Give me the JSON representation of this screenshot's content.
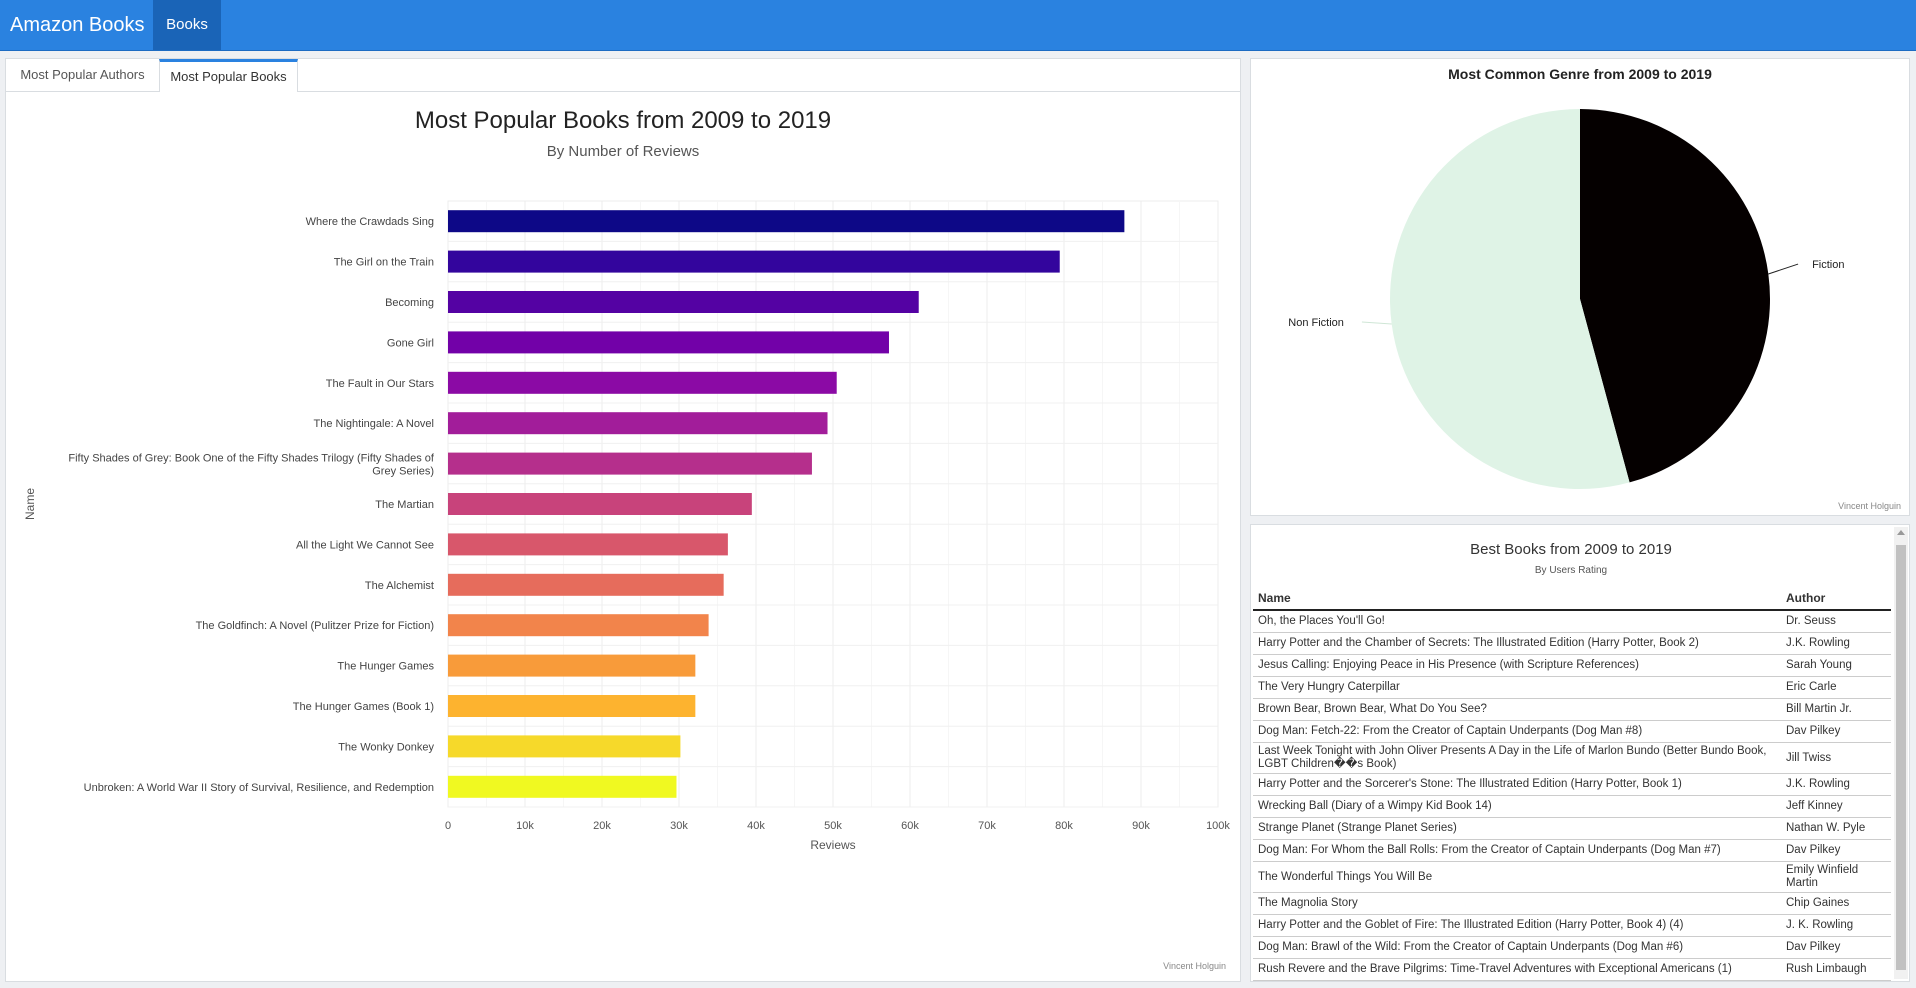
{
  "app": {
    "brand": "Amazon Books",
    "nav_tab": "Books"
  },
  "tabs": [
    "Most Popular Authors",
    "Most Popular Books"
  ],
  "colors": {
    "topbar": "#2a82e0",
    "nav_active": "#1a64b7",
    "accent": "#2a82e0"
  },
  "bar_chart": {
    "title": "Most Popular Books from 2009 to 2019",
    "subtitle": "By Number of Reviews",
    "credit": "Vincent Holguin"
  },
  "pie_chart": {
    "title": "Most Common Genre from 2009 to 2019",
    "credit": "Vincent Holguin"
  },
  "chart_data": [
    {
      "type": "bar",
      "orientation": "horizontal",
      "title": "Most Popular Books from 2009 to 2019",
      "subtitle": "By Number of Reviews",
      "xlabel": "Reviews",
      "ylabel": "Name",
      "xlim": [
        0,
        100000
      ],
      "xticks": [
        0,
        10000,
        20000,
        30000,
        40000,
        50000,
        60000,
        70000,
        80000,
        90000,
        100000
      ],
      "xtick_labels": [
        "0",
        "10k",
        "20k",
        "30k",
        "40k",
        "50k",
        "60k",
        "70k",
        "80k",
        "90k",
        "100k"
      ],
      "grid": true,
      "categories": [
        "Where the Crawdads Sing",
        "The Girl on the Train",
        "Becoming",
        "Gone Girl",
        "The Fault in Our Stars",
        "The Nightingale: A Novel",
        "Fifty Shades of Grey: Book One of the Fifty Shades Trilogy (Fifty Shades of Grey Series)",
        "The Martian",
        "All the Light We Cannot See",
        "The Alchemist",
        "The Goldfinch: A Novel (Pulitzer Prize for Fiction)",
        "The Hunger Games",
        "The Hunger Games (Book 1)",
        "The Wonky Donkey",
        "Unbroken: A World War II Story of Survival, Resilience, and Redemption"
      ],
      "values": [
        87841,
        79446,
        61133,
        57271,
        50482,
        49288,
        47265,
        39459,
        36348,
        35799,
        33844,
        32122,
        32122,
        30183,
        29673
      ],
      "colors": [
        "#0d0887",
        "#33059d",
        "#5402a3",
        "#7201a8",
        "#8b0aa5",
        "#a21d9a",
        "#b52f8c",
        "#c8437b",
        "#d8576b",
        "#e66c5c",
        "#f2844b",
        "#f89b3a",
        "#fdb32f",
        "#f6d92a",
        "#f0f921"
      ]
    },
    {
      "type": "pie",
      "title": "Most Common Genre from 2009 to 2019",
      "labels": [
        "Fiction",
        "Non Fiction"
      ],
      "values": [
        45.8,
        54.2
      ],
      "colors": [
        "#050000",
        "#dff3e6"
      ]
    }
  ],
  "table": {
    "title": "Best Books from 2009 to 2019",
    "subtitle": "By Users Rating",
    "headers": [
      "Name",
      "Author"
    ],
    "rows": [
      {
        "name": "Oh, the Places You'll Go!",
        "author": "Dr. Seuss"
      },
      {
        "name": "Harry Potter and the Chamber of Secrets: The Illustrated Edition (Harry Potter, Book 2)",
        "author": "J.K. Rowling"
      },
      {
        "name": "Jesus Calling: Enjoying Peace in His Presence (with Scripture References)",
        "author": "Sarah Young"
      },
      {
        "name": "The Very Hungry Caterpillar",
        "author": "Eric Carle"
      },
      {
        "name": "Brown Bear, Brown Bear, What Do You See?",
        "author": "Bill Martin Jr."
      },
      {
        "name": "Dog Man: Fetch-22: From the Creator of Captain Underpants (Dog Man #8)",
        "author": "Dav Pilkey"
      },
      {
        "name": "Last Week Tonight with John Oliver Presents A Day in the Life of Marlon Bundo (Better Bundo Book, LGBT Children��s Book)",
        "author": "Jill Twiss"
      },
      {
        "name": "Harry Potter and the Sorcerer's Stone: The Illustrated Edition (Harry Potter, Book 1)",
        "author": "J.K. Rowling"
      },
      {
        "name": "Wrecking Ball (Diary of a Wimpy Kid Book 14)",
        "author": "Jeff Kinney"
      },
      {
        "name": "Strange Planet (Strange Planet Series)",
        "author": "Nathan W. Pyle"
      },
      {
        "name": "Dog Man: For Whom the Ball Rolls: From the Creator of Captain Underpants (Dog Man #7)",
        "author": "Dav Pilkey"
      },
      {
        "name": "The Wonderful Things You Will Be",
        "author": "Emily Winfield Martin"
      },
      {
        "name": "The Magnolia Story",
        "author": "Chip Gaines"
      },
      {
        "name": "Harry Potter and the Goblet of Fire: The Illustrated Edition (Harry Potter, Book 4) (4)",
        "author": "J. K. Rowling"
      },
      {
        "name": "Dog Man: Brawl of the Wild: From the Creator of Captain Underpants (Dog Man #6)",
        "author": "Dav Pilkey"
      },
      {
        "name": "Rush Revere and the Brave Pilgrims: Time-Travel Adventures with Exceptional Americans (1)",
        "author": "Rush Limbaugh"
      }
    ]
  }
}
